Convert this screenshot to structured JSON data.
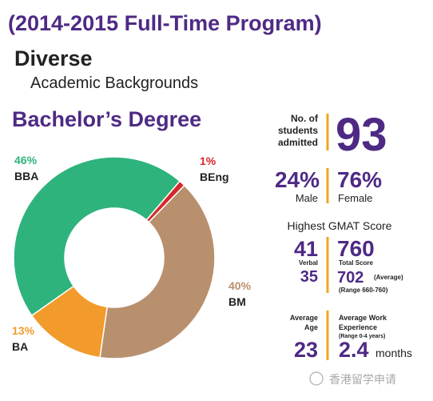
{
  "header": {
    "title": "(2014-2015 Full-Time Program)",
    "heading": "Diverse",
    "subheading": "Academic Backgrounds"
  },
  "chart_data": {
    "type": "donut",
    "title": "Bachelor’s Degree",
    "categories": [
      "BBA",
      "BEng",
      "BM",
      "BA"
    ],
    "values": [
      46,
      1,
      40,
      13
    ],
    "value_labels": [
      "46%",
      "1%",
      "40%",
      "13%"
    ],
    "colors": [
      "#2eb37c",
      "#d6282b",
      "#b8906e",
      "#f29a2b"
    ],
    "label_colors": [
      "#2eb37c",
      "#d6282b",
      "#b8906e",
      "#f29a2b"
    ]
  },
  "stats": {
    "admitted": {
      "label": [
        "No. of",
        "students",
        "admitted"
      ],
      "value": "93"
    },
    "gender": {
      "male_value": "24%",
      "male_label": "Male",
      "female_value": "76%",
      "female_label": "Female"
    },
    "gmat": {
      "title": "Highest GMAT Score",
      "verbal_value": "41",
      "verbal_label": "Verbal",
      "verbal_avg": "35",
      "total_value": "760",
      "total_label": "Total Score",
      "avg_value": "702",
      "avg_label": "(Average)",
      "range": "(Range 660-760)"
    },
    "age": {
      "label": [
        "Average",
        "Age"
      ],
      "value": "23"
    },
    "work": {
      "label": [
        "Average Work",
        "Experience"
      ],
      "range": "(Range 0-4 years)",
      "value": "2.4",
      "unit": "months"
    }
  },
  "watermark": "香港留学申请"
}
